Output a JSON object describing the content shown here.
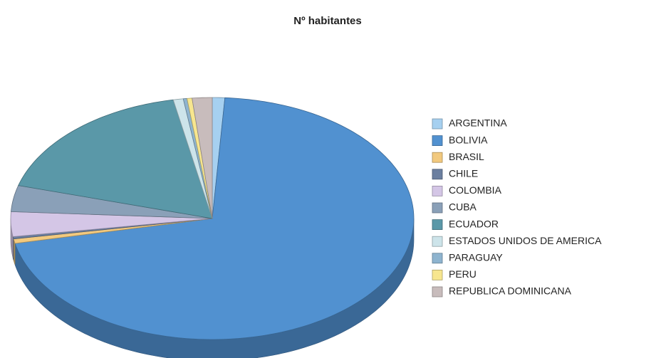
{
  "chart_data": {
    "type": "pie",
    "title": "Nº habitantes",
    "categories": [
      "ARGENTINA",
      "BOLIVIA",
      "BRASIL",
      "CHILE",
      "COLOMBIA",
      "CUBA",
      "ECUADOR",
      "ESTADOS UNIDOS DE AMERICA",
      "PARAGUAY",
      "PERU",
      "REPUBLICA DOMINICANA"
    ],
    "values": [
      1.0,
      70.7,
      0.6,
      0.3,
      3.3,
      3.5,
      17.5,
      0.8,
      0.3,
      0.4,
      1.6
    ],
    "colors": [
      "#a6d0f0",
      "#5191d0",
      "#f2c97e",
      "#6b7fa0",
      "#d4c6e6",
      "#8aa0b8",
      "#5a98a8",
      "#cde4ea",
      "#8eb4cf",
      "#f7e68f",
      "#c8bcbc"
    ],
    "legend": "right"
  }
}
